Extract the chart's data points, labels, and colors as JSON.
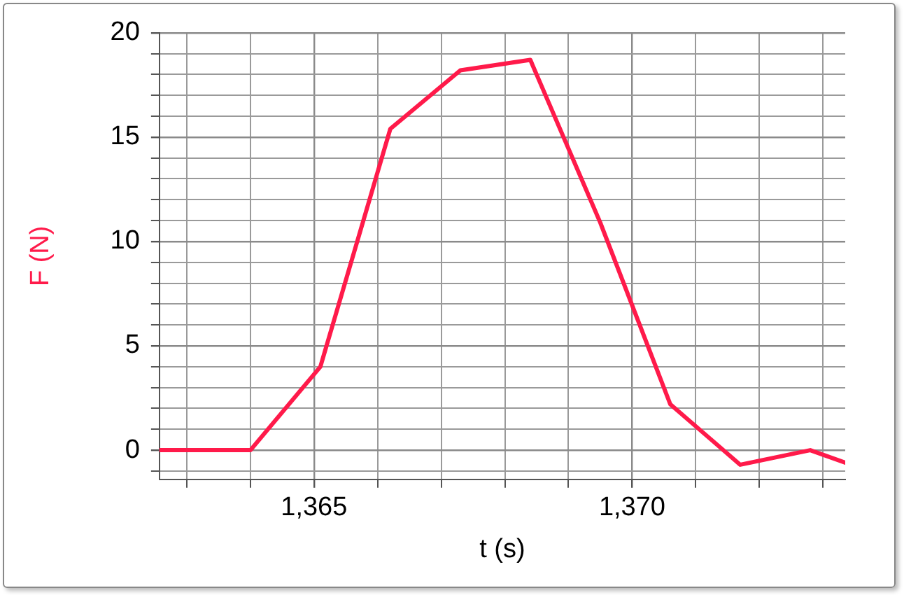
{
  "chart_data": {
    "type": "line",
    "xlabel": "t (s)",
    "ylabel": "F (N)",
    "x": [
      1362.57,
      1364.0,
      1365.1,
      1366.2,
      1367.3,
      1368.4,
      1369.5,
      1370.6,
      1371.7,
      1372.8,
      1373.35
    ],
    "series": [
      {
        "color": "#ff1a4a",
        "values": [
          0,
          0,
          4.0,
          15.4,
          18.2,
          18.7,
          10.9,
          2.2,
          -0.7,
          0.0,
          -0.6
        ]
      }
    ],
    "xlim": [
      1362.57,
      1373.35
    ],
    "xticks": [
      {
        "value": 1363,
        "label": null
      },
      {
        "value": 1364,
        "label": null
      },
      {
        "value": 1365,
        "label": "1,365"
      },
      {
        "value": 1366,
        "label": null
      },
      {
        "value": 1367,
        "label": null
      },
      {
        "value": 1368,
        "label": null
      },
      {
        "value": 1369,
        "label": null
      },
      {
        "value": 1370,
        "label": "1,370"
      },
      {
        "value": 1371,
        "label": null
      },
      {
        "value": 1372,
        "label": null
      },
      {
        "value": 1373,
        "label": null
      }
    ],
    "ylim": [
      -1.4,
      20
    ],
    "yticks": [
      {
        "value": -1,
        "label": null
      },
      0,
      {
        "value": 1,
        "label": null
      },
      {
        "value": 2,
        "label": null
      },
      {
        "value": 3,
        "label": null
      },
      {
        "value": 4,
        "label": null
      },
      5,
      {
        "value": 6,
        "label": null
      },
      {
        "value": 7,
        "label": null
      },
      {
        "value": 8,
        "label": null
      },
      {
        "value": 9,
        "label": null
      },
      10,
      {
        "value": 11,
        "label": null
      },
      {
        "value": 12,
        "label": null
      },
      {
        "value": 13,
        "label": null
      },
      {
        "value": 14,
        "label": null
      },
      15,
      {
        "value": 16,
        "label": null
      },
      {
        "value": 17,
        "label": null
      },
      {
        "value": 18,
        "label": null
      },
      {
        "value": 19,
        "label": null
      },
      20
    ],
    "grid": true,
    "legend": false,
    "marker": "none",
    "line_style": "solid"
  }
}
